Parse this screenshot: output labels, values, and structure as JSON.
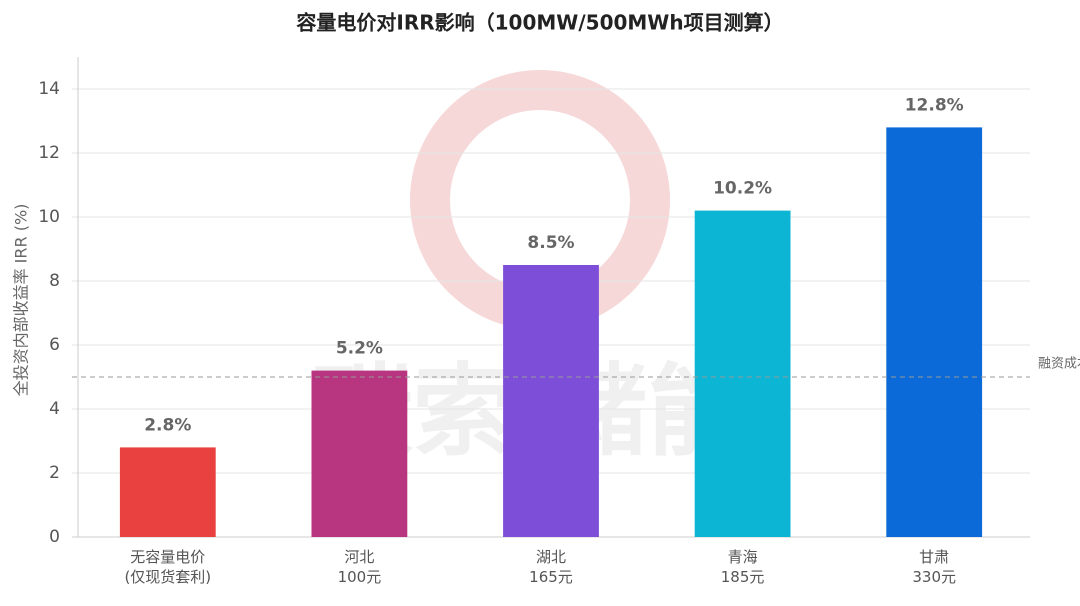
{
  "chart_data": {
    "type": "bar",
    "title": "容量电价对IRR影响（100MW/500MWh项目测算）",
    "ylabel": "全投资内部收益率 IRR (%)",
    "categories": [
      "无容量电价\n(仅现货套利)",
      "河北\n100元",
      "湖北\n165元",
      "青海\n185元",
      "甘肃\n330元"
    ],
    "values": [
      2.8,
      5.2,
      8.5,
      10.2,
      12.8
    ],
    "value_labels": [
      "2.8%",
      "5.2%",
      "8.5%",
      "10.2%",
      "12.8%"
    ],
    "colors": [
      "#e8413f",
      "#b83580",
      "#7d4fd8",
      "#0bb5d3",
      "#0b6ad8"
    ],
    "ylim": [
      0,
      15
    ],
    "yticks": [
      0,
      2,
      4,
      6,
      8,
      10,
      12,
      14
    ],
    "grid": true,
    "reference_line": {
      "value": 5,
      "label": "融资成本线"
    },
    "watermark": "碳索·储能"
  }
}
